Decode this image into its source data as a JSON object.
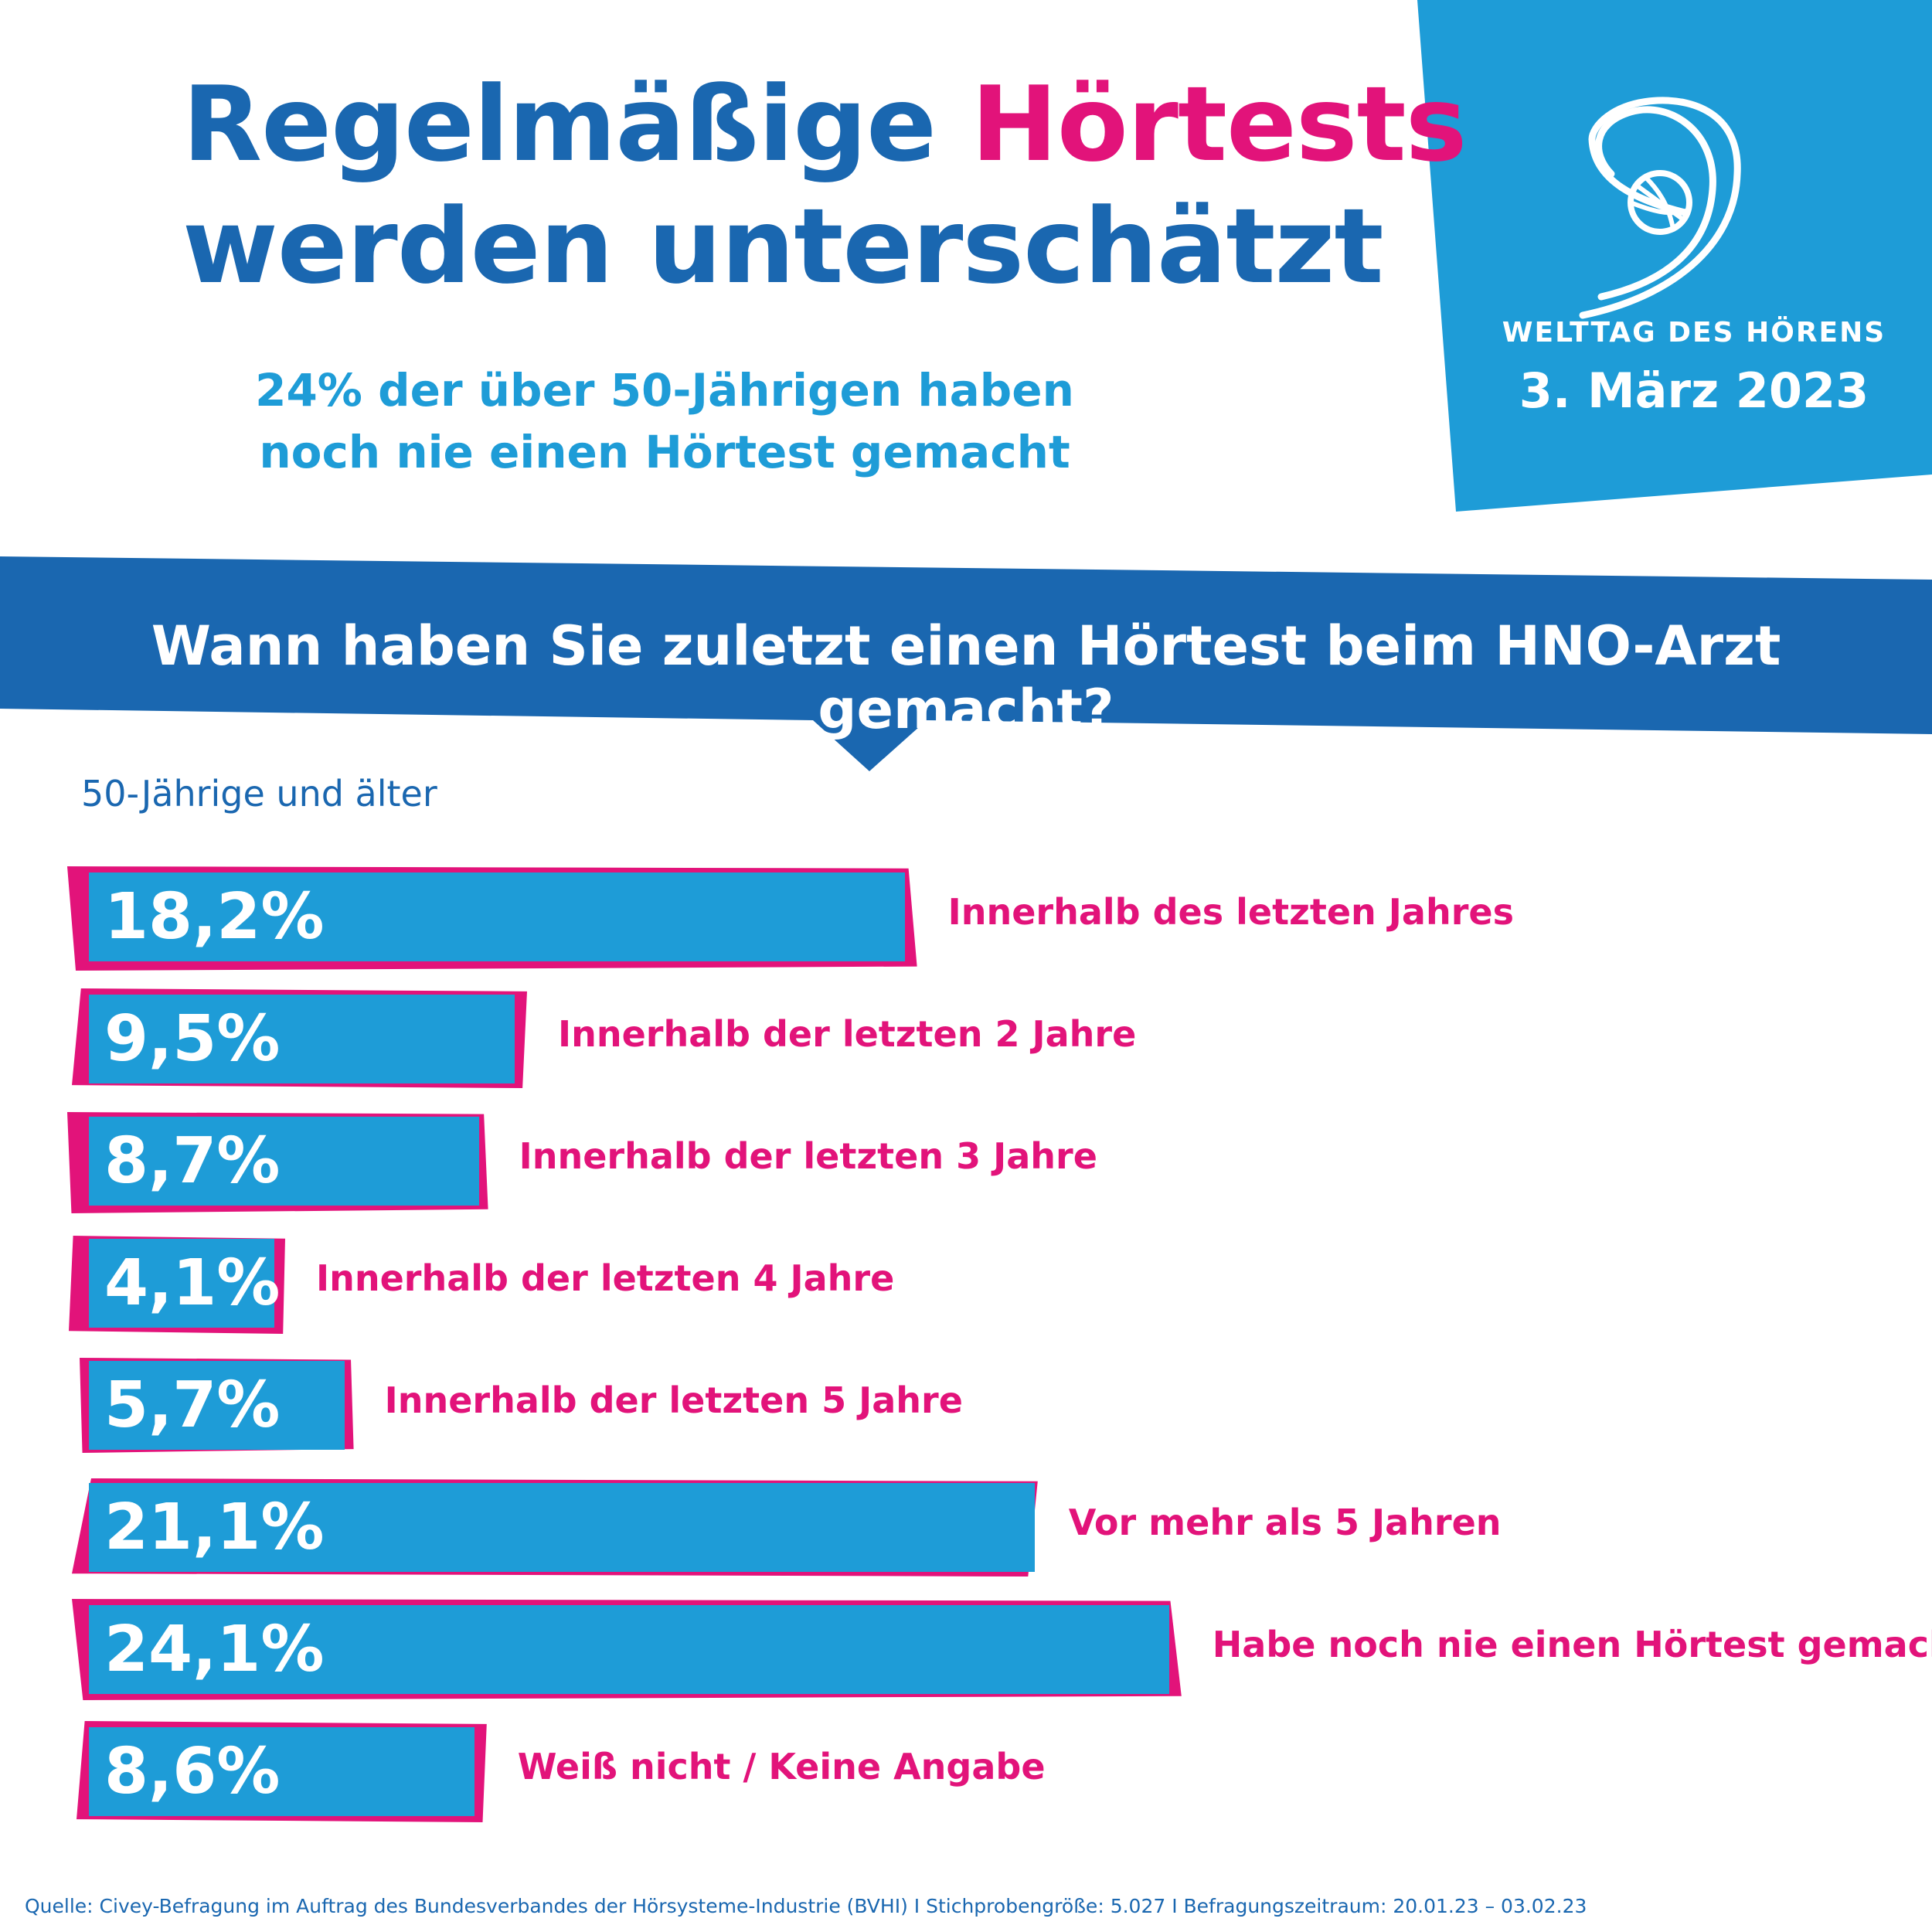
{
  "header": {
    "title_part1": "Regelmäßige ",
    "title_part2": "Hörtests",
    "title_line2": "werden unterschätzt",
    "subtitle_line1": "24% der über 50-Jährigen haben",
    "subtitle_line2": "noch nie einen Hörtest gemacht"
  },
  "badge": {
    "name": "WELTTAG DES HÖRENS",
    "date": "3. März 2023",
    "icon": "ear-globe-logo"
  },
  "question": "Wann haben Sie zuletzt einen Hörtest beim HNO-Arzt gemacht?",
  "group_label": "50-Jährige und älter",
  "colors": {
    "dark_blue": "#1a67b0",
    "light_blue": "#1e9cd7",
    "pink": "#e2137a"
  },
  "chart_data": {
    "type": "bar",
    "orientation": "horizontal",
    "categories": [
      "Innerhalb des letzten Jahres",
      "Innerhalb der letzten 2 Jahre",
      "Innerhalb der letzten 3 Jahre",
      "Innerhalb der letzten 4 Jahre",
      "Innerhalb der letzten 5 Jahre",
      "Vor mehr als 5 Jahren",
      "Habe noch nie einen Hörtest gemacht",
      "Weiß nicht / Keine Angabe"
    ],
    "values": [
      18.2,
      9.5,
      8.7,
      4.1,
      5.7,
      21.1,
      24.1,
      8.6
    ],
    "value_labels": [
      "18,2%",
      "9,5%",
      "8,7%",
      "4,1%",
      "5,7%",
      "21,1%",
      "24,1%",
      "8,6%"
    ],
    "unit": "%"
  },
  "footer": "Quelle: Civey-Befragung im Auftrag des Bundesverbandes der Hörsysteme-Industrie (BVHI) I Stichprobengröße: 5.027 I Befragungszeitraum: 20.01.23 – 03.02.23"
}
